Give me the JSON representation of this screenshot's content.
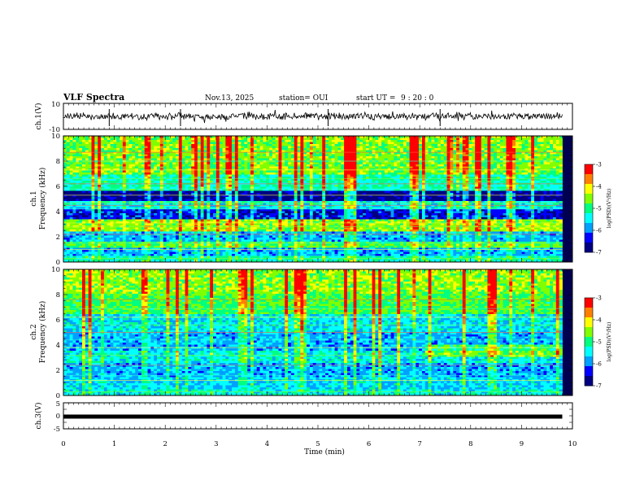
{
  "header": {
    "title": "VLF Spectra",
    "date": "Nov.13, 2025",
    "station": "station= OUI",
    "start_label": "start  UT =",
    "start_time": "9 : 20 : 0"
  },
  "chart_data": [
    {
      "type": "line",
      "name": "ch1-waveform",
      "ylabel": "ch.1(V)",
      "ylim": [
        -10,
        10
      ],
      "yticks": [
        "10",
        "-10"
      ],
      "x": [
        0,
        9.8
      ],
      "level": 0,
      "color": "#000000"
    },
    {
      "type": "heatmap",
      "name": "ch1-spectrogram",
      "ylabel": "Frequency (kHz)",
      "ylabel2": "ch.1",
      "ylim": [
        0,
        10
      ],
      "yticks": [
        "0",
        "2",
        "4",
        "6",
        "8",
        "10"
      ],
      "xlim": [
        0,
        9.8
      ],
      "bands": [
        {
          "f0": 0,
          "f1": 0.5,
          "level": 0.45
        },
        {
          "f0": 0.5,
          "f1": 1.2,
          "level": 0.3
        },
        {
          "f0": 1.2,
          "f1": 1.6,
          "level": 0.55
        },
        {
          "f0": 1.6,
          "f1": 2.4,
          "level": 0.3
        },
        {
          "f0": 2.4,
          "f1": 3.4,
          "level": 0.62
        },
        {
          "f0": 3.4,
          "f1": 4.2,
          "level": 0.15
        },
        {
          "f0": 4.2,
          "f1": 4.8,
          "level": 0.38
        },
        {
          "f0": 4.8,
          "f1": 5.6,
          "level": 0.05
        },
        {
          "f0": 5.6,
          "f1": 7.0,
          "level": 0.45
        },
        {
          "f0": 7.0,
          "f1": 10,
          "level": 0.6
        }
      ],
      "lines_khz": [
        0.3,
        1.0,
        1.5,
        2.2,
        2.8,
        3.1,
        4.2,
        4.5,
        4.7,
        5.3,
        5.8,
        6.2,
        6.6,
        7.3,
        8.0,
        8.7
      ]
    },
    {
      "type": "heatmap",
      "name": "ch2-spectrogram",
      "ylabel": "Frequency (kHz)",
      "ylabel2": "ch.2",
      "ylim": [
        0,
        10
      ],
      "yticks": [
        "0",
        "2",
        "4",
        "6",
        "8",
        "10"
      ],
      "xlim": [
        0,
        9.8
      ],
      "bands": [
        {
          "f0": 0,
          "f1": 0.5,
          "level": 0.4
        },
        {
          "f0": 0.5,
          "f1": 1.5,
          "level": 0.35
        },
        {
          "f0": 1.5,
          "f1": 2.6,
          "level": 0.3
        },
        {
          "f0": 2.6,
          "f1": 3.6,
          "level": 0.4
        },
        {
          "f0": 3.6,
          "f1": 5.0,
          "level": 0.3
        },
        {
          "f0": 5.0,
          "f1": 6.5,
          "level": 0.38
        },
        {
          "f0": 6.5,
          "f1": 8.0,
          "level": 0.55
        },
        {
          "f0": 8.0,
          "f1": 10,
          "level": 0.62
        }
      ],
      "lines_khz": [
        0.3,
        1.2,
        1.6,
        2.4,
        3.2,
        3.8,
        4.4,
        5.0,
        5.6,
        6.2,
        6.9,
        7.6
      ]
    },
    {
      "type": "line",
      "name": "ch3-waveform",
      "ylabel": "ch.3(V)",
      "ylim": [
        -5,
        5
      ],
      "yticks": [
        "5",
        "0",
        "-5"
      ],
      "x": [
        0,
        9.8
      ],
      "level": -0.3,
      "color": "#000000"
    }
  ],
  "xaxis": {
    "label": "Time  (min)",
    "xlim": [
      0,
      10
    ],
    "ticks": [
      "0",
      "1",
      "2",
      "3",
      "4",
      "5",
      "6",
      "7",
      "8",
      "9",
      "10"
    ]
  },
  "colorbar": {
    "label": "log(PSD)(V²/Hz)",
    "ticks": [
      "-3",
      "-4",
      "-5",
      "-6",
      "-7"
    ],
    "range": [
      -7,
      -3
    ],
    "colors": [
      "#000080",
      "#0000ff",
      "#00a0ff",
      "#00ffff",
      "#00ff80",
      "#80ff00",
      "#ffff00",
      "#ff8000",
      "#ff0000",
      "#ffffff"
    ]
  }
}
